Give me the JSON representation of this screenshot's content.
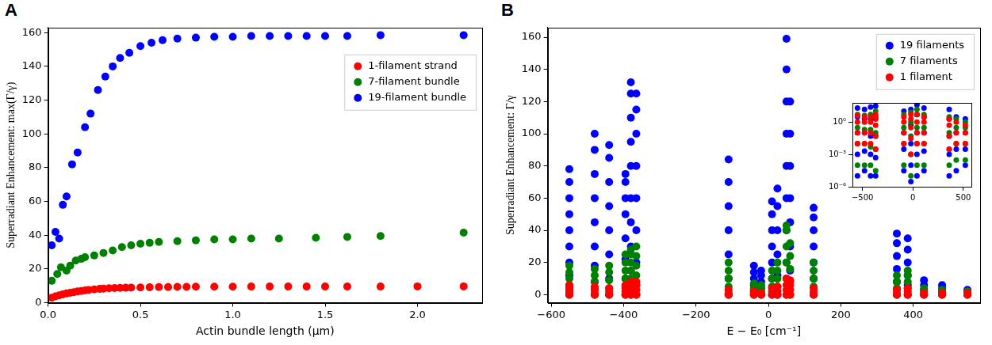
{
  "chart_data": [
    {
      "type": "scatter",
      "title": "A",
      "marker": "circle",
      "grid": false,
      "legend": "upper right",
      "xlabel": "Actin bundle length (μm)",
      "ylabel": "Superradiant Enhancement: max(Γ/γ)",
      "xlim": [
        0,
        2.35
      ],
      "xticks": [
        {
          "value": 0,
          "label": "0.0"
        },
        0.5,
        {
          "value": 1,
          "label": "1.0"
        },
        1.5,
        {
          "value": 2,
          "label": "2.0"
        }
      ],
      "ylim": [
        0,
        163
      ],
      "yticks": [
        0,
        20,
        40,
        60,
        80,
        100,
        120,
        140,
        160
      ],
      "series": [
        {
          "name": "1-filament strand",
          "color": "#ff0000",
          "x": [
            0.02,
            0.04,
            0.06,
            0.08,
            0.1,
            0.12,
            0.14,
            0.16,
            0.18,
            0.2,
            0.22,
            0.25,
            0.28,
            0.3,
            0.33,
            0.36,
            0.39,
            0.42,
            0.45,
            0.5,
            0.55,
            0.6,
            0.65,
            0.7,
            0.75,
            0.8,
            0.9,
            1.0,
            1.1,
            1.2,
            1.3,
            1.4,
            1.5,
            1.62,
            1.8,
            2.0,
            2.25
          ],
          "values": [
            3,
            3.8,
            4.4,
            5,
            5.5,
            5.9,
            6.3,
            6.7,
            7,
            7.3,
            7.6,
            7.9,
            8.2,
            8.4,
            8.6,
            8.7,
            8.8,
            8.9,
            9,
            9.1,
            9.2,
            9.3,
            9.3,
            9.4,
            9.4,
            9.5,
            9.5,
            9.5,
            9.6,
            9.6,
            9.6,
            9.6,
            9.6,
            9.6,
            9.6,
            9.7,
            9.7
          ]
        },
        {
          "name": "7-filament bundle",
          "color": "#008000",
          "x": [
            0.02,
            0.05,
            0.07,
            0.1,
            0.12,
            0.15,
            0.18,
            0.2,
            0.25,
            0.3,
            0.35,
            0.4,
            0.45,
            0.5,
            0.55,
            0.6,
            0.7,
            0.8,
            0.9,
            1.0,
            1.1,
            1.25,
            1.45,
            1.62,
            1.8,
            2.25
          ],
          "values": [
            13,
            17,
            21,
            19,
            22,
            25,
            26,
            27,
            28,
            29.5,
            31,
            33,
            34,
            35,
            35.5,
            36,
            36.5,
            37,
            37.5,
            37.5,
            38,
            38,
            38.5,
            39,
            39.5,
            41.5
          ]
        },
        {
          "name": "19-filament bundle",
          "color": "#0000ff",
          "x": [
            0.02,
            0.04,
            0.06,
            0.08,
            0.1,
            0.13,
            0.16,
            0.2,
            0.23,
            0.27,
            0.31,
            0.35,
            0.39,
            0.44,
            0.5,
            0.56,
            0.62,
            0.7,
            0.8,
            0.9,
            1.0,
            1.1,
            1.2,
            1.3,
            1.4,
            1.5,
            1.62,
            1.8,
            2.25
          ],
          "values": [
            34,
            42,
            38,
            58,
            63,
            82,
            89,
            104,
            112,
            126,
            134,
            140,
            145,
            148,
            152,
            154,
            155.5,
            156.5,
            157,
            157.5,
            157.5,
            158,
            158,
            158,
            158,
            158,
            158,
            158.5,
            158.5
          ]
        }
      ]
    },
    {
      "type": "scatter",
      "title": "B",
      "marker": "circle",
      "grid": false,
      "legend": "upper right",
      "xlabel": "E − E₀ [cm⁻¹]",
      "ylabel": "Superradiant Enhancement: Γ/γ",
      "xlim": [
        -610,
        585
      ],
      "xticks": [
        {
          "value": -600,
          "label": "−600"
        },
        {
          "value": -400,
          "label": "−400"
        },
        {
          "value": -200,
          "label": "−200"
        },
        0,
        200,
        400
      ],
      "ylim": [
        -5,
        166
      ],
      "yticks": [
        0,
        20,
        40,
        60,
        80,
        100,
        120,
        140,
        160
      ],
      "series": [
        {
          "name": "19 filaments",
          "color": "#0000ff",
          "x": [
            -550,
            -480,
            -440,
            -395,
            -380,
            -365,
            -110,
            -40,
            -20,
            10,
            25,
            50,
            60,
            125,
            355,
            385,
            430,
            480,
            550
          ],
          "values": [
            [
              0,
              5,
              12,
              20,
              30,
              40,
              50,
              60,
              70,
              78
            ],
            [
              0,
              8,
              18,
              30,
              45,
              60,
              75,
              90,
              100
            ],
            [
              0,
              10,
              25,
              40,
              55,
              70,
              85,
              93
            ],
            [
              0,
              10,
              22,
              35,
              50,
              60,
              70,
              75
            ],
            [
              0,
              15,
              30,
              45,
              60,
              80,
              95,
              110,
              125,
              132
            ],
            [
              0,
              20,
              40,
              60,
              80,
              100,
              115,
              125
            ],
            [
              0,
              10,
              25,
              40,
              55,
              70,
              84
            ],
            [
              0,
              3,
              6,
              10,
              14,
              18
            ],
            [
              0,
              4,
              8,
              12,
              15
            ],
            [
              0,
              10,
              20,
              30,
              40,
              50,
              58
            ],
            [
              0,
              12,
              25,
              40,
              55,
              66
            ],
            [
              0,
              20,
              40,
              60,
              80,
              100,
              120,
              140,
              159
            ],
            [
              0,
              15,
              30,
              45,
              60,
              80,
              100,
              120
            ],
            [
              0,
              10,
              20,
              30,
              40,
              48,
              54
            ],
            [
              0,
              8,
              16,
              24,
              32,
              38
            ],
            [
              0,
              6,
              12,
              20,
              28,
              35
            ],
            [
              0,
              3,
              6,
              9
            ],
            [
              0,
              2,
              4,
              6
            ],
            [
              0,
              1,
              3
            ]
          ]
        },
        {
          "name": "7 filaments",
          "color": "#008000",
          "x": [
            -550,
            -480,
            -440,
            -395,
            -380,
            -365,
            -110,
            -40,
            -20,
            10,
            25,
            50,
            60,
            125,
            355,
            385,
            430,
            480,
            550
          ],
          "values": [
            [
              0,
              3,
              6,
              10,
              14,
              18
            ],
            [
              0,
              4,
              8,
              12,
              16
            ],
            [
              0,
              4,
              9,
              14,
              18
            ],
            [
              0,
              5,
              10,
              15,
              20,
              25
            ],
            [
              0,
              5,
              10,
              15,
              20,
              25,
              28
            ],
            [
              0,
              6,
              12,
              18,
              24,
              30
            ],
            [
              0,
              5,
              10,
              15,
              20
            ],
            [
              0,
              2,
              4,
              7
            ],
            [
              0,
              2,
              4,
              6
            ],
            [
              0,
              5,
              10,
              15
            ],
            [
              0,
              5,
              10,
              15,
              20
            ],
            [
              0,
              10,
              20,
              30,
              40,
              43
            ],
            [
              0,
              8,
              16,
              24,
              32
            ],
            [
              0,
              5,
              10,
              15,
              20
            ],
            [
              0,
              4,
              8,
              12
            ],
            [
              0,
              4,
              8,
              12,
              15
            ],
            [
              0,
              2,
              4
            ],
            [
              0,
              1,
              3
            ],
            [
              0,
              1,
              2
            ]
          ]
        },
        {
          "name": "1 filament",
          "color": "#ff0000",
          "x": [
            -550,
            -480,
            -440,
            -395,
            -380,
            -365,
            -110,
            -40,
            -20,
            10,
            25,
            50,
            60,
            125,
            355,
            385,
            430,
            480,
            550
          ],
          "values": [
            [
              0,
              1,
              2,
              4,
              6
            ],
            [
              0,
              1,
              3,
              5
            ],
            [
              0,
              2,
              4
            ],
            [
              0,
              2,
              4,
              6
            ],
            [
              0,
              2,
              5,
              8
            ],
            [
              0,
              3,
              6,
              8
            ],
            [
              0,
              1,
              3
            ],
            [
              0,
              1,
              2
            ],
            [
              0,
              1
            ],
            [
              0,
              2,
              4
            ],
            [
              0,
              2,
              5
            ],
            [
              0,
              3,
              6,
              10
            ],
            [
              0,
              3,
              6,
              9
            ],
            [
              0,
              2,
              4
            ],
            [
              0,
              1,
              3
            ],
            [
              0,
              2,
              4
            ],
            [
              0,
              1
            ],
            [
              0,
              1
            ],
            [
              0,
              1
            ]
          ]
        }
      ]
    },
    {
      "type": "scatter",
      "marker": "circle",
      "grid": false,
      "log": "y",
      "xlim": [
        -600,
        580
      ],
      "xticks": [
        {
          "value": -500,
          "label": "−500"
        },
        0,
        500
      ],
      "ylim": [
        1e-06,
        60
      ],
      "yticks": [
        {
          "value": 1e-06,
          "label": "10⁻⁶"
        },
        {
          "value": 0.001,
          "label": "10⁻³"
        },
        {
          "value": 1,
          "label": "10⁰"
        }
      ],
      "series": [
        {
          "color": "#0000ff",
          "x": [
            -550,
            -480,
            -420,
            -370,
            -90,
            -20,
            40,
            110,
            360,
            430,
            520
          ],
          "values": [
            [
              1e-05,
              0.001,
              0.1,
              3,
              20
            ],
            [
              3e-05,
              0.002,
              0.1,
              2,
              15
            ],
            [
              1e-05,
              0.001,
              0.05,
              2,
              25
            ],
            [
              1e-05,
              0.0005,
              0.05,
              3,
              30
            ],
            [
              3e-05,
              0.003,
              0.1,
              10
            ],
            [
              3e-06,
              0.0001,
              0.01,
              0.5,
              15
            ],
            [
              1e-05,
              0.001,
              0.1,
              5,
              40
            ],
            [
              3e-05,
              0.002,
              0.1,
              3,
              20
            ],
            [
              1e-05,
              0.001,
              0.05,
              2,
              15
            ],
            [
              3e-05,
              0.003,
              0.1,
              3
            ],
            [
              0.0001,
              0.003,
              0.1,
              2
            ]
          ]
        },
        {
          "color": "#008000",
          "x": [
            -550,
            -480,
            -420,
            -370,
            -90,
            -20,
            40,
            110,
            360,
            430,
            520
          ],
          "values": [
            [
              0.0001,
              0.01,
              0.3,
              5
            ],
            [
              0.0001,
              0.01,
              0.2,
              4
            ],
            [
              0.0001,
              0.005,
              0.2,
              5
            ],
            [
              3e-05,
              0.003,
              0.1,
              2,
              10
            ],
            [
              0.0001,
              0.01,
              0.3,
              5
            ],
            [
              1e-05,
              0.001,
              0.05,
              1,
              8
            ],
            [
              0.0001,
              0.01,
              0.3,
              5,
              15
            ],
            [
              0.0001,
              0.01,
              0.3,
              5
            ],
            [
              0.0001,
              0.003,
              0.1,
              3
            ],
            [
              0.0003,
              0.01,
              0.3,
              2
            ],
            [
              0.0003,
              0.01,
              0.3,
              1
            ]
          ]
        },
        {
          "color": "#ff0000",
          "x": [
            -550,
            -480,
            -420,
            -370,
            -90,
            -20,
            40,
            110,
            360,
            430,
            520
          ],
          "values": [
            [
              0.01,
              0.1,
              1,
              4
            ],
            [
              0.01,
              0.1,
              1,
              3
            ],
            [
              0.01,
              0.1,
              1,
              3
            ],
            [
              0.003,
              0.05,
              0.5,
              2,
              5
            ],
            [
              0.01,
              0.1,
              1,
              3
            ],
            [
              0.001,
              0.03,
              0.3,
              2,
              5
            ],
            [
              0.01,
              0.1,
              1,
              5
            ],
            [
              0.01,
              0.1,
              1,
              3
            ],
            [
              0.003,
              0.05,
              0.5,
              2
            ],
            [
              0.01,
              0.1,
              1
            ],
            [
              0.01,
              0.1,
              0.5
            ]
          ]
        }
      ]
    }
  ]
}
